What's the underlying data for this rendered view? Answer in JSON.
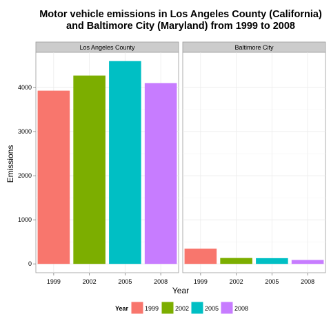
{
  "chart_data": {
    "type": "bar",
    "title_line1": "Motor vehicle emissions in Los Angeles County (California)",
    "title_line2": "and Baltimore City (Maryland) from 1999 to 2008",
    "xlabel": "Year",
    "ylabel": "Emissions",
    "ylim": [
      -200,
      4800
    ],
    "yticks": [
      0,
      1000,
      2000,
      3000,
      4000
    ],
    "categories": [
      "1999",
      "2002",
      "2005",
      "2008"
    ],
    "colors": [
      "#f8766d",
      "#7cae00",
      "#00bfc4",
      "#c77cff"
    ],
    "grid": true,
    "legend": {
      "title": "Year",
      "position": "bottom",
      "entries": [
        "1999",
        "2002",
        "2005",
        "2008"
      ]
    },
    "panels": [
      {
        "name": "Los Angeles County",
        "values": [
          3931,
          4274,
          4601,
          4101
        ]
      },
      {
        "name": "Baltimore City",
        "values": [
          347,
          134,
          130,
          89
        ]
      }
    ]
  }
}
